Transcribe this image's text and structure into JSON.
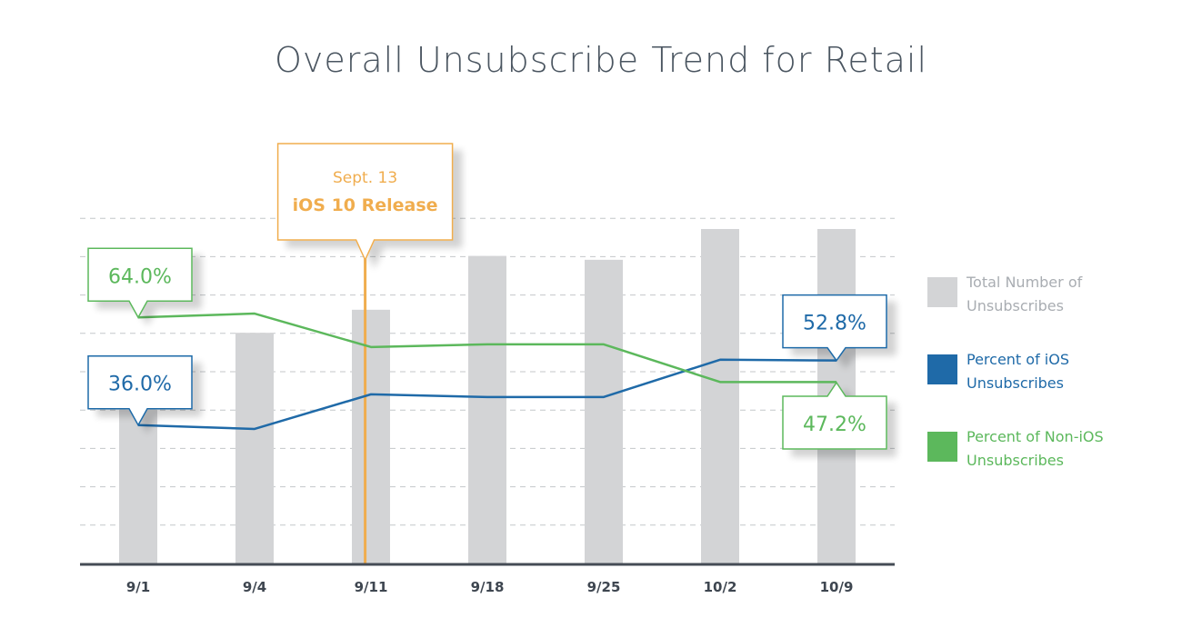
{
  "chart_data": {
    "type": "bar",
    "title": "Overall Unsubscribe Trend for Retail",
    "categories": [
      "9/1",
      "9/4",
      "9/11",
      "9/18",
      "9/25",
      "10/2",
      "10/9"
    ],
    "ylim": [
      0,
      100
    ],
    "grid": true,
    "legend_position": "right",
    "series": [
      {
        "name": "Total Number of Unsubscribes",
        "type": "bar",
        "color": "#d3d4d6",
        "values": [
          40,
          60,
          66,
          80,
          79,
          87,
          87
        ]
      },
      {
        "name": "Percent of iOS Unsubscribes",
        "type": "line",
        "color": "#1f6aa8",
        "values": [
          36.0,
          35.0,
          44.0,
          43.3,
          43.3,
          53.0,
          52.8
        ]
      },
      {
        "name": "Percent of Non-iOS Unsubscribes",
        "type": "line",
        "color": "#5cb85c",
        "values": [
          64.0,
          65.0,
          56.3,
          57.0,
          57.0,
          47.2,
          47.2
        ]
      }
    ],
    "annotations": [
      {
        "type": "event",
        "category_position": 2.45,
        "line1": "Sept. 13",
        "line2": "iOS 10 Release",
        "color": "#f0ad4e"
      },
      {
        "type": "value-callout",
        "series": 2,
        "index": 0,
        "text": "64.0%"
      },
      {
        "type": "value-callout",
        "series": 1,
        "index": 0,
        "text": "36.0%"
      },
      {
        "type": "value-callout",
        "series": 1,
        "index": 6,
        "text": "52.8%"
      },
      {
        "type": "value-callout",
        "series": 2,
        "index": 6,
        "text": "47.2%"
      }
    ],
    "legend": [
      {
        "label_line1": "Total Number of",
        "label_line2": "Unsubscribes",
        "color": "#d3d4d6",
        "text_color": "#a9adb2"
      },
      {
        "label_line1": "Percent of iOS",
        "label_line2": "Unsubscribes",
        "color": "#1f6aa8",
        "text_color": "#1f6aa8"
      },
      {
        "label_line1": "Percent of Non-iOS",
        "label_line2": "Unsubscribes",
        "color": "#5cb85c",
        "text_color": "#5cb85c"
      }
    ]
  }
}
